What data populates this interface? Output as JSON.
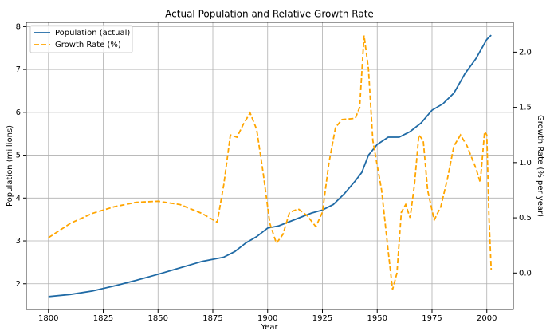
{
  "chart_data": {
    "type": "line",
    "title": "Actual Population and Relative Growth Rate",
    "xlabel": "Year",
    "ylabel": "Population (millions)",
    "y2label": "Growth Rate (% per year)",
    "grid": true,
    "legend": "upper left",
    "xlim": [
      1789.9,
      2012.1
    ],
    "xticks": [
      1800,
      1825,
      1850,
      1875,
      1900,
      1925,
      1950,
      1975,
      2000
    ],
    "ylim": [
      1.4,
      8.1
    ],
    "yticks": [
      2,
      3,
      4,
      5,
      6,
      7,
      8
    ],
    "y2lim": [
      -0.33,
      2.27
    ],
    "y2ticks": [
      {
        "value": 0,
        "label": "0.0"
      },
      {
        "value": 0.5,
        "label": "0.5"
      },
      {
        "value": 1,
        "label": "1.0"
      },
      {
        "value": 1.5,
        "label": "1.5"
      },
      {
        "value": 2,
        "label": "2.0"
      }
    ],
    "series": [
      {
        "name": "Population (actual)",
        "color": "#1f6aa5",
        "dash": false,
        "x": [
          1800,
          1810,
          1820,
          1830,
          1840,
          1850,
          1860,
          1870,
          1880,
          1885,
          1890,
          1895,
          1900,
          1905,
          1910,
          1915,
          1920,
          1925,
          1930,
          1935,
          1940,
          1943,
          1946,
          1950,
          1955,
          1960,
          1965,
          1970,
          1975,
          1980,
          1985,
          1990,
          1995,
          2000,
          2002
        ],
        "values": [
          1.7,
          1.75,
          1.83,
          1.95,
          2.08,
          2.22,
          2.37,
          2.52,
          2.62,
          2.75,
          2.95,
          3.1,
          3.3,
          3.35,
          3.45,
          3.55,
          3.65,
          3.72,
          3.85,
          4.1,
          4.4,
          4.6,
          5.0,
          5.25,
          5.42,
          5.42,
          5.55,
          5.75,
          6.05,
          6.2,
          6.45,
          6.9,
          7.25,
          7.7,
          7.8
        ]
      },
      {
        "name": "Growth Rate (%)",
        "color": "#ffa500",
        "dash": true,
        "axis": "y2",
        "x": [
          1800,
          1810,
          1820,
          1830,
          1840,
          1850,
          1860,
          1870,
          1877,
          1880,
          1883,
          1886,
          1889,
          1892,
          1895,
          1898,
          1901,
          1904,
          1907,
          1910,
          1914,
          1918,
          1922,
          1925,
          1928,
          1931,
          1934,
          1940,
          1942,
          1944,
          1946,
          1948,
          1952,
          1955,
          1957,
          1959,
          1961,
          1963,
          1965,
          1967,
          1969,
          1971,
          1973,
          1976,
          1979,
          1982,
          1985,
          1988,
          1991,
          1995,
          1997,
          1999,
          2000,
          2001,
          2002
        ],
        "values": [
          0.32,
          0.45,
          0.54,
          0.6,
          0.64,
          0.65,
          0.62,
          0.54,
          0.46,
          0.8,
          1.25,
          1.23,
          1.35,
          1.45,
          1.3,
          0.9,
          0.45,
          0.27,
          0.35,
          0.55,
          0.58,
          0.52,
          0.42,
          0.55,
          1.0,
          1.32,
          1.39,
          1.4,
          1.5,
          2.15,
          1.85,
          1.2,
          0.75,
          0.2,
          -0.15,
          0.0,
          0.55,
          0.62,
          0.5,
          0.8,
          1.25,
          1.2,
          0.75,
          0.48,
          0.6,
          0.85,
          1.15,
          1.25,
          1.15,
          0.95,
          0.82,
          1.28,
          1.25,
          0.5,
          0.03
        ]
      }
    ]
  }
}
